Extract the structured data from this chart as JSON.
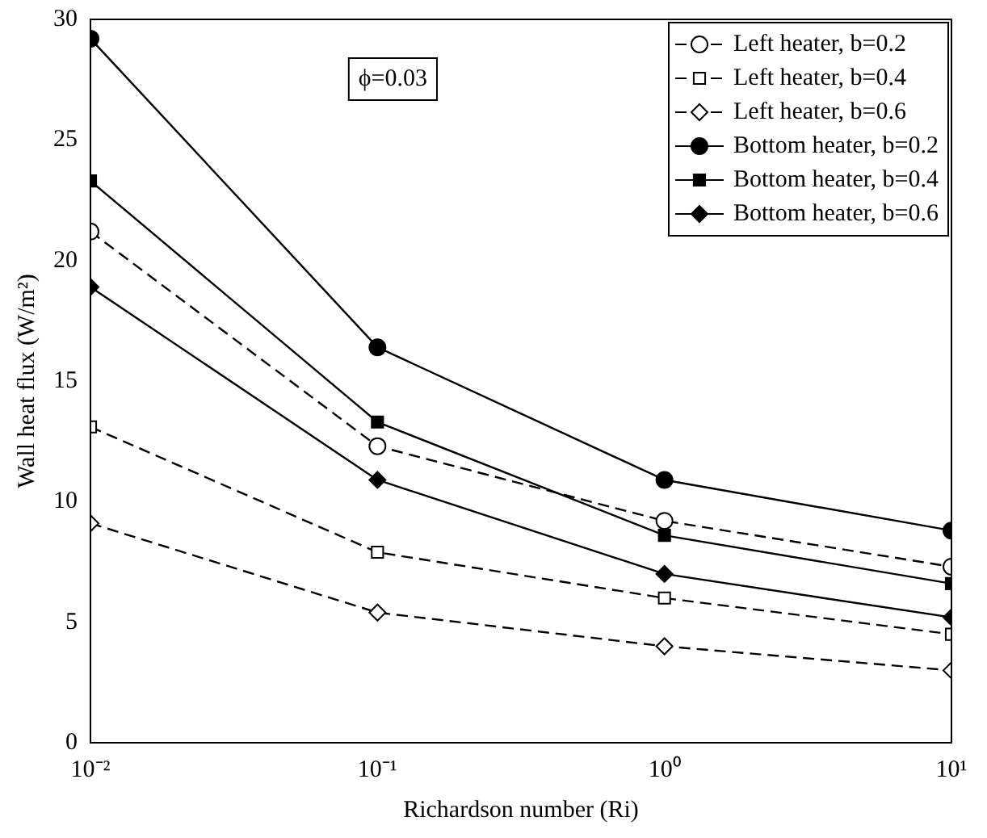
{
  "chart_data": {
    "type": "line",
    "xlabel": "Richardson number (Ri)",
    "ylabel": "Wall heat flux (W/m²)",
    "annotations": [
      "ϕ=0.03"
    ],
    "x": [
      0.01,
      0.1,
      1,
      10
    ],
    "log": "x",
    "xlim": [
      0.01,
      10
    ],
    "xticks": [
      {
        "value": 0.01,
        "label": "10⁻²"
      },
      {
        "value": 0.1,
        "label": "10⁻¹"
      },
      {
        "value": 1,
        "label": "10⁰"
      },
      {
        "value": 10,
        "label": "10¹"
      }
    ],
    "ylim": [
      0,
      30
    ],
    "yticks": [
      0,
      5,
      10,
      15,
      20,
      25,
      30
    ],
    "grid": false,
    "legend": "top right",
    "series": [
      {
        "name": "Left heater, b=0.2",
        "color": "#000000",
        "marker": "circle",
        "line_style": "dashed",
        "values": [
          21.2,
          12.3,
          9.2,
          7.3
        ]
      },
      {
        "name": "Left heater, b=0.4",
        "color": "#000000",
        "marker": "square",
        "line_style": "dashed",
        "values": [
          13.1,
          7.9,
          6.0,
          4.5
        ]
      },
      {
        "name": "Left heater, b=0.6",
        "color": "#000000",
        "marker": "diamond",
        "line_style": "dashed",
        "values": [
          9.1,
          5.4,
          4.0,
          3.0
        ]
      },
      {
        "name": "Bottom heater, b=0.2",
        "color": "#000000",
        "marker": "circle",
        "line_style": "solid",
        "values": [
          29.2,
          16.4,
          10.9,
          8.8
        ]
      },
      {
        "name": "Bottom heater, b=0.4",
        "color": "#000000",
        "marker": "square",
        "line_style": "solid",
        "values": [
          23.3,
          13.3,
          8.6,
          6.6
        ]
      },
      {
        "name": "Bottom heater, b=0.6",
        "color": "#000000",
        "marker": "diamond",
        "line_style": "solid",
        "values": [
          18.9,
          10.9,
          7.0,
          5.2
        ]
      }
    ]
  }
}
